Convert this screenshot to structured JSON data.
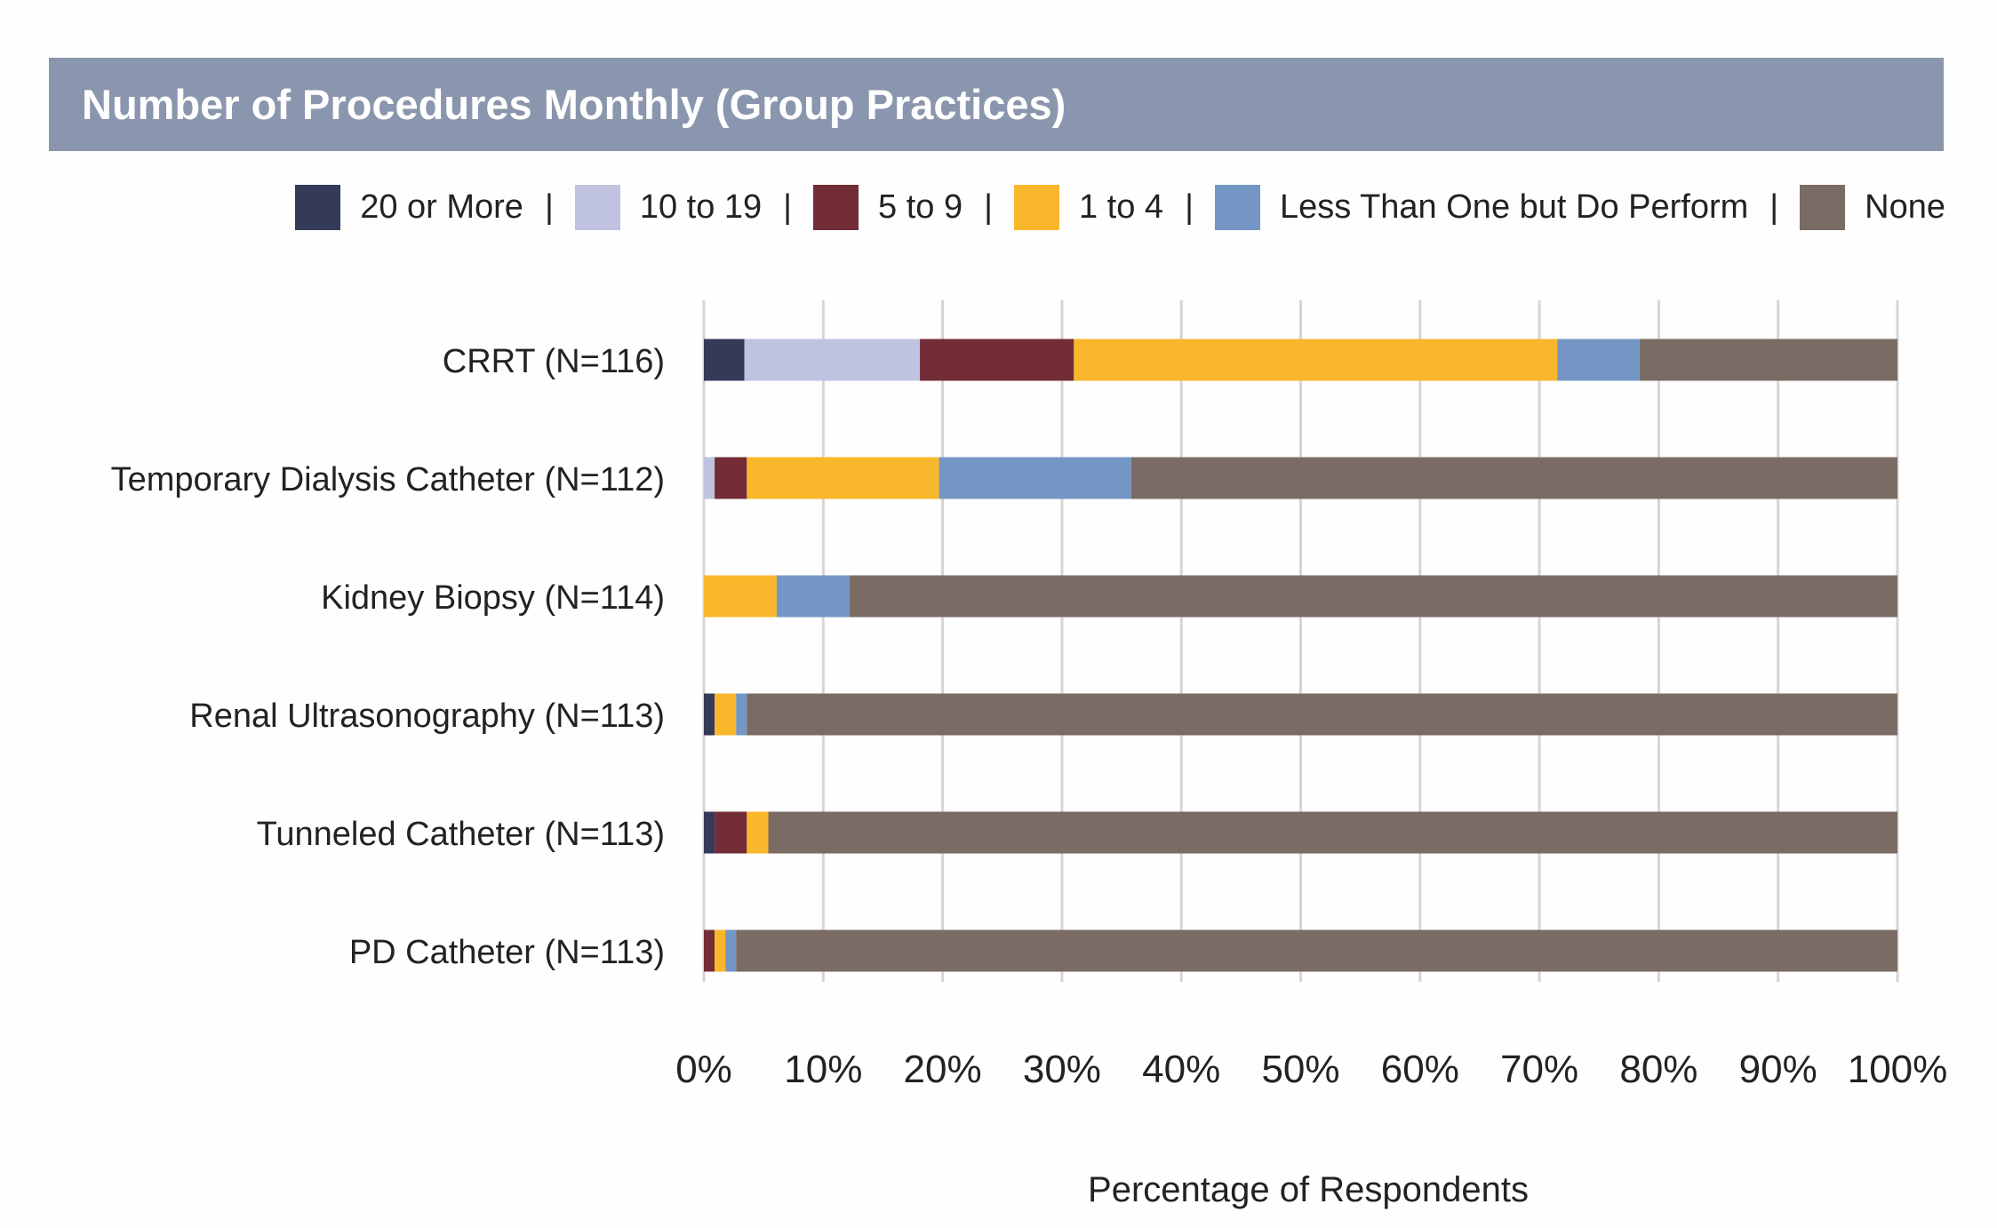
{
  "header": {
    "title": "Number of Procedures Monthly (Group Practices)"
  },
  "legend": {
    "separator": "|",
    "items": [
      {
        "label": "20 or More",
        "color": "#363a59"
      },
      {
        "label": "10 to 19",
        "color": "#c0c3e0"
      },
      {
        "label": "5 to 9",
        "color": "#722d36"
      },
      {
        "label": "1 to 4",
        "color": "#f9b72b"
      },
      {
        "label": "Less Than One but Do Perform",
        "color": "#7396c4"
      },
      {
        "label": "None",
        "color": "#7a6b64"
      }
    ]
  },
  "chart_data": {
    "type": "bar",
    "orientation": "horizontal",
    "stacked": true,
    "title": "Number of Procedures Monthly (Group Practices)",
    "xlabel": "Percentage of Respondents",
    "ylabel": "",
    "xlim": [
      0,
      100
    ],
    "x_ticks": [
      "0%",
      "10%",
      "20%",
      "30%",
      "40%",
      "50%",
      "60%",
      "70%",
      "80%",
      "90%",
      "100%"
    ],
    "grid": "vertical",
    "legend_position": "top-right",
    "categories": [
      "CRRT (N=116)",
      "Temporary Dialysis Catheter (N=112)",
      "Kidney Biopsy (N=114)",
      "Renal Ultrasonography (N=113)",
      "Tunneled Catheter (N=113)",
      "PD Catheter (N=113)"
    ],
    "series": [
      {
        "name": "20 or More",
        "color": "#363a59",
        "values": [
          3.4,
          0,
          0,
          0.9,
          0.9,
          0
        ]
      },
      {
        "name": "10 to 19",
        "color": "#c0c3e0",
        "values": [
          14.7,
          0.9,
          0,
          0,
          0,
          0
        ]
      },
      {
        "name": "5 to 9",
        "color": "#722d36",
        "values": [
          12.9,
          2.7,
          0,
          0,
          2.7,
          0.9
        ]
      },
      {
        "name": "1 to 4",
        "color": "#f9b72b",
        "values": [
          40.5,
          16.1,
          6.1,
          1.8,
          1.8,
          0.9
        ]
      },
      {
        "name": "Less Than One but Do Perform",
        "color": "#7396c4",
        "values": [
          6.9,
          16.1,
          6.1,
          0.9,
          0,
          0.9
        ]
      },
      {
        "name": "None",
        "color": "#7a6b64",
        "values": [
          21.6,
          64.2,
          87.8,
          96.4,
          94.6,
          97.3
        ]
      }
    ]
  }
}
